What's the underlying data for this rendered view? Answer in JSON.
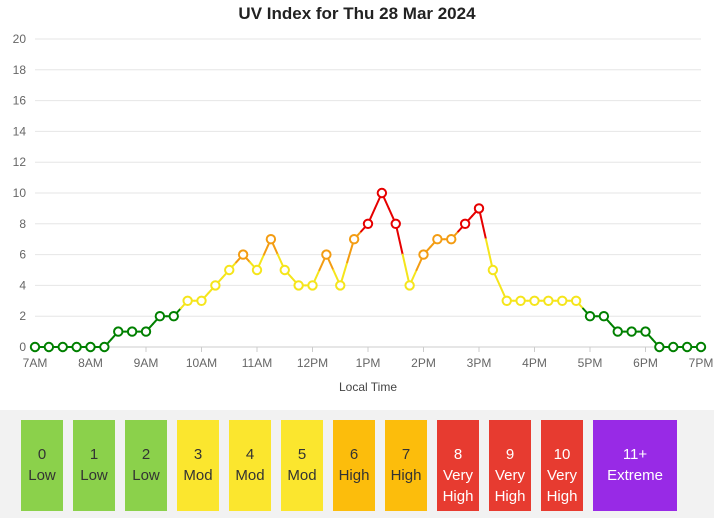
{
  "chart_data": {
    "type": "line",
    "title": "UV Index for Thu 28 Mar 2024",
    "xlabel": "Local Time",
    "ylabel": "",
    "ylim": [
      0,
      20
    ],
    "yticks": [
      "0",
      "2",
      "4",
      "6",
      "8",
      "10",
      "12",
      "14",
      "16",
      "18",
      "20"
    ],
    "xticks": [
      "7AM",
      "8AM",
      "9AM",
      "10AM",
      "11AM",
      "12PM",
      "1PM",
      "2PM",
      "3PM",
      "4PM",
      "5PM",
      "6PM",
      "7PM"
    ],
    "x_unit": "hours after 7AM, 15-minute steps",
    "series": [
      {
        "values": [
          0,
          0,
          0,
          0,
          0,
          0,
          1,
          1,
          1,
          2,
          2,
          3,
          3,
          4,
          5,
          6,
          5,
          7,
          5,
          4,
          4,
          6,
          4,
          7,
          8,
          10,
          8,
          4,
          6,
          7,
          7,
          8,
          9,
          5,
          3,
          3,
          3,
          3,
          3,
          3,
          2,
          2,
          1,
          1,
          1,
          0,
          0,
          0,
          0
        ]
      }
    ],
    "grid": true,
    "legend_position": "bottom"
  },
  "level_colors": {
    "low": "#008000",
    "mod": "#f5e51b",
    "high": "#f39c12",
    "very_high": "#e60000"
  },
  "legend": [
    {
      "value": "0",
      "label": "Low",
      "color": "#8bd14b"
    },
    {
      "value": "1",
      "label": "Low",
      "color": "#8bd14b"
    },
    {
      "value": "2",
      "label": "Low",
      "color": "#8bd14b"
    },
    {
      "value": "3",
      "label": "Mod",
      "color": "#fbe62e"
    },
    {
      "value": "4",
      "label": "Mod",
      "color": "#fbe62e"
    },
    {
      "value": "5",
      "label": "Mod",
      "color": "#fbe62e"
    },
    {
      "value": "6",
      "label": "High",
      "color": "#fcbd0c"
    },
    {
      "value": "7",
      "label": "High",
      "color": "#fcbd0c"
    },
    {
      "value": "8",
      "label": "Very High",
      "color": "#e73b30"
    },
    {
      "value": "9",
      "label": "Very High",
      "color": "#e73b30"
    },
    {
      "value": "10",
      "label": "Very High",
      "color": "#e73b30"
    },
    {
      "value": "11+",
      "label": "Extreme",
      "color": "#982ae6"
    }
  ]
}
